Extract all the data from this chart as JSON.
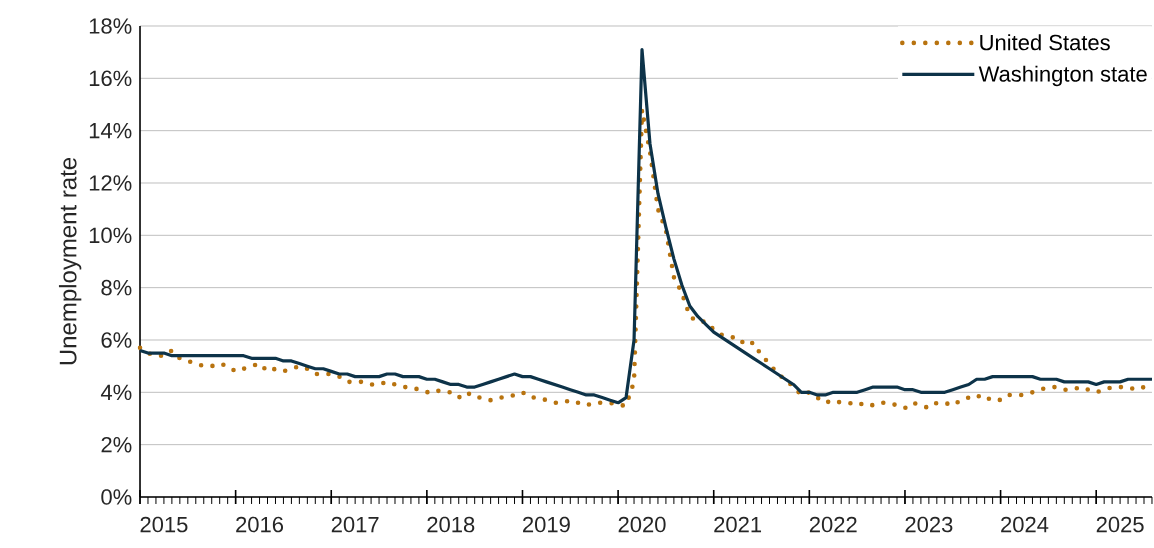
{
  "chart_data": {
    "type": "line",
    "ylabel": "Unemployment rate",
    "x": [
      "2015-01",
      "2015-02",
      "2015-03",
      "2015-04",
      "2015-05",
      "2015-06",
      "2015-07",
      "2015-08",
      "2015-09",
      "2015-10",
      "2015-11",
      "2015-12",
      "2016-01",
      "2016-02",
      "2016-03",
      "2016-04",
      "2016-05",
      "2016-06",
      "2016-07",
      "2016-08",
      "2016-09",
      "2016-10",
      "2016-11",
      "2016-12",
      "2017-01",
      "2017-02",
      "2017-03",
      "2017-04",
      "2017-05",
      "2017-06",
      "2017-07",
      "2017-08",
      "2017-09",
      "2017-10",
      "2017-11",
      "2017-12",
      "2018-01",
      "2018-02",
      "2018-03",
      "2018-04",
      "2018-05",
      "2018-06",
      "2018-07",
      "2018-08",
      "2018-09",
      "2018-10",
      "2018-11",
      "2018-12",
      "2019-01",
      "2019-02",
      "2019-03",
      "2019-04",
      "2019-05",
      "2019-06",
      "2019-07",
      "2019-08",
      "2019-09",
      "2019-10",
      "2019-11",
      "2019-12",
      "2020-01",
      "2020-02",
      "2020-03",
      "2020-04",
      "2020-05",
      "2020-06",
      "2020-07",
      "2020-08",
      "2020-09",
      "2020-10",
      "2020-11",
      "2020-12",
      "2021-01",
      "2021-02",
      "2021-03",
      "2021-04",
      "2021-05",
      "2021-06",
      "2021-07",
      "2021-08",
      "2021-09",
      "2021-10",
      "2021-11",
      "2021-12",
      "2022-01",
      "2022-02",
      "2022-03",
      "2022-04",
      "2022-05",
      "2022-06",
      "2022-07",
      "2022-08",
      "2022-09",
      "2022-10",
      "2022-11",
      "2022-12",
      "2023-01",
      "2023-02",
      "2023-03",
      "2023-04",
      "2023-05",
      "2023-06",
      "2023-07",
      "2023-08",
      "2023-09",
      "2023-10",
      "2023-11",
      "2023-12",
      "2024-01",
      "2024-02",
      "2024-03",
      "2024-04",
      "2024-05",
      "2024-06",
      "2024-07",
      "2024-08",
      "2024-09",
      "2024-10",
      "2024-11",
      "2024-12",
      "2025-01",
      "2025-02",
      "2025-03",
      "2025-04",
      "2025-05",
      "2025-06",
      "2025-07",
      "2025-08"
    ],
    "series": [
      {
        "name": "United States",
        "color": "#b8730f",
        "line_style": "dotted",
        "values": [
          5.7,
          5.5,
          5.4,
          5.4,
          5.6,
          5.3,
          5.2,
          5.1,
          5.0,
          5.0,
          5.1,
          5.0,
          4.8,
          4.9,
          5.0,
          5.1,
          4.8,
          4.9,
          4.8,
          4.9,
          5.0,
          4.9,
          4.7,
          4.7,
          4.7,
          4.6,
          4.4,
          4.4,
          4.4,
          4.3,
          4.3,
          4.4,
          4.3,
          4.2,
          4.2,
          4.1,
          4.0,
          4.1,
          4.0,
          4.0,
          3.8,
          4.0,
          3.8,
          3.8,
          3.7,
          3.8,
          3.8,
          3.9,
          4.0,
          3.8,
          3.8,
          3.7,
          3.6,
          3.6,
          3.7,
          3.6,
          3.5,
          3.6,
          3.6,
          3.6,
          3.5,
          3.5,
          4.4,
          14.8,
          13.2,
          11.0,
          10.2,
          8.4,
          7.8,
          6.9,
          6.7,
          6.7,
          6.4,
          6.2,
          6.1,
          6.1,
          5.8,
          5.9,
          5.4,
          5.1,
          4.7,
          4.5,
          4.2,
          3.9,
          4.0,
          3.8,
          3.6,
          3.7,
          3.6,
          3.6,
          3.5,
          3.6,
          3.5,
          3.6,
          3.6,
          3.5,
          3.4,
          3.6,
          3.5,
          3.4,
          3.6,
          3.6,
          3.5,
          3.7,
          3.8,
          3.9,
          3.7,
          3.8,
          3.7,
          3.9,
          3.9,
          3.9,
          4.0,
          4.1,
          4.2,
          4.2,
          4.1,
          4.1,
          4.2,
          4.1,
          4.0,
          4.1,
          4.2,
          4.2,
          4.2,
          4.1,
          4.2,
          4.3
        ]
      },
      {
        "name": "Washington state",
        "color": "#0d3349",
        "line_style": "solid",
        "values": [
          5.6,
          5.5,
          5.5,
          5.5,
          5.4,
          5.4,
          5.4,
          5.4,
          5.4,
          5.4,
          5.4,
          5.4,
          5.4,
          5.4,
          5.3,
          5.3,
          5.3,
          5.3,
          5.2,
          5.2,
          5.1,
          5.0,
          4.9,
          4.9,
          4.8,
          4.7,
          4.7,
          4.6,
          4.6,
          4.6,
          4.6,
          4.7,
          4.7,
          4.6,
          4.6,
          4.6,
          4.5,
          4.5,
          4.4,
          4.3,
          4.3,
          4.2,
          4.2,
          4.3,
          4.4,
          4.5,
          4.6,
          4.7,
          4.6,
          4.6,
          4.5,
          4.4,
          4.3,
          4.2,
          4.1,
          4.0,
          3.9,
          3.9,
          3.8,
          3.7,
          3.6,
          3.8,
          6.0,
          17.1,
          13.5,
          11.6,
          10.3,
          9.1,
          8.1,
          7.3,
          6.9,
          6.6,
          6.3,
          6.1,
          5.9,
          5.7,
          5.5,
          5.3,
          5.1,
          4.9,
          4.7,
          4.5,
          4.3,
          4.0,
          4.0,
          3.9,
          3.9,
          4.0,
          4.0,
          4.0,
          4.0,
          4.1,
          4.2,
          4.2,
          4.2,
          4.2,
          4.1,
          4.1,
          4.0,
          4.0,
          4.0,
          4.0,
          4.1,
          4.2,
          4.3,
          4.5,
          4.5,
          4.6,
          4.6,
          4.6,
          4.6,
          4.6,
          4.6,
          4.5,
          4.5,
          4.5,
          4.4,
          4.4,
          4.4,
          4.4,
          4.3,
          4.4,
          4.4,
          4.4,
          4.5,
          4.5,
          4.5,
          4.5
        ]
      }
    ],
    "xlim": [
      "2015-01",
      "2025-08"
    ],
    "xticks": [
      {
        "value": "2015-04",
        "label": "2015"
      },
      {
        "value": "2016-04",
        "label": "2016"
      },
      {
        "value": "2017-04",
        "label": "2017"
      },
      {
        "value": "2018-04",
        "label": "2018"
      },
      {
        "value": "2019-04",
        "label": "2019"
      },
      {
        "value": "2020-04",
        "label": "2020"
      },
      {
        "value": "2021-04",
        "label": "2021"
      },
      {
        "value": "2022-04",
        "label": "2022"
      },
      {
        "value": "2023-04",
        "label": "2023"
      },
      {
        "value": "2024-04",
        "label": "2024"
      },
      {
        "value": "2025-04",
        "label": "2025"
      },
      {
        "value": "2015-01",
        "label": null
      },
      {
        "value": "2016-01",
        "label": null
      },
      {
        "value": "2017-01",
        "label": null
      },
      {
        "value": "2018-01",
        "label": null
      },
      {
        "value": "2019-01",
        "label": null
      },
      {
        "value": "2020-01",
        "label": null
      },
      {
        "value": "2021-01",
        "label": null
      },
      {
        "value": "2022-01",
        "label": null
      },
      {
        "value": "2023-01",
        "label": null
      },
      {
        "value": "2024-01",
        "label": null
      },
      {
        "value": "2025-01",
        "label": null
      }
    ],
    "ylim": [
      0,
      18
    ],
    "yticks": [
      {
        "value": 0,
        "label": "0%"
      },
      {
        "value": 2,
        "label": "2%"
      },
      {
        "value": 4,
        "label": "4%"
      },
      {
        "value": 6,
        "label": "6%"
      },
      {
        "value": 8,
        "label": "8%"
      },
      {
        "value": 10,
        "label": "10%"
      },
      {
        "value": 12,
        "label": "12%"
      },
      {
        "value": 14,
        "label": "14%"
      },
      {
        "value": 16,
        "label": "16%"
      },
      {
        "value": 18,
        "label": "18%"
      }
    ],
    "grid": "y",
    "legend": "top right",
    "marker": "none"
  }
}
